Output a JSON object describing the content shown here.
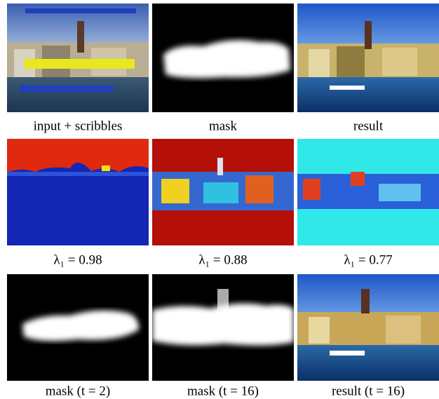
{
  "figure": {
    "panels": [
      {
        "caption": "input + scribbles"
      },
      {
        "caption": "mask"
      },
      {
        "caption": "result"
      },
      {
        "caption": "λ₁ = 0.98"
      },
      {
        "caption": "λ₁ = 0.88"
      },
      {
        "caption": "λ₁ = 0.77"
      },
      {
        "caption": "mask (t = 2)"
      },
      {
        "caption": "mask (t = 16)"
      },
      {
        "caption": "result (t = 16)"
      }
    ]
  }
}
